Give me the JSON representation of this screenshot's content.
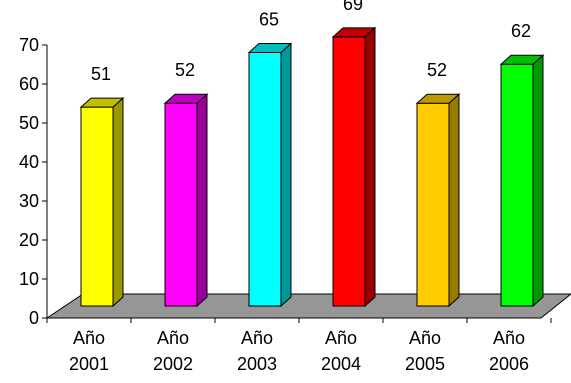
{
  "chart_data": {
    "type": "bar",
    "title": "",
    "xlabel": "",
    "ylabel": "",
    "ylim": [
      0,
      70
    ],
    "yticks": [
      "0",
      "10",
      "20",
      "30",
      "40",
      "50",
      "60",
      "70"
    ],
    "grid": false,
    "legend": "none",
    "style": "3d-columns",
    "categories": [
      [
        "Año",
        "2001"
      ],
      [
        "Año",
        "2002"
      ],
      [
        "Año",
        "2003"
      ],
      [
        "Año",
        "2004"
      ],
      [
        "Año",
        "2005"
      ],
      [
        "Año",
        "2006"
      ]
    ],
    "values": [
      51,
      52,
      65,
      69,
      52,
      62
    ],
    "value_labels": [
      "51",
      "52",
      "65",
      "69",
      "52",
      "62"
    ],
    "colors": [
      "#ffff00",
      "#ff00ff",
      "#00ffff",
      "#ff0000",
      "#ffcc00",
      "#00ff00"
    ],
    "floor_color": "#969696"
  }
}
